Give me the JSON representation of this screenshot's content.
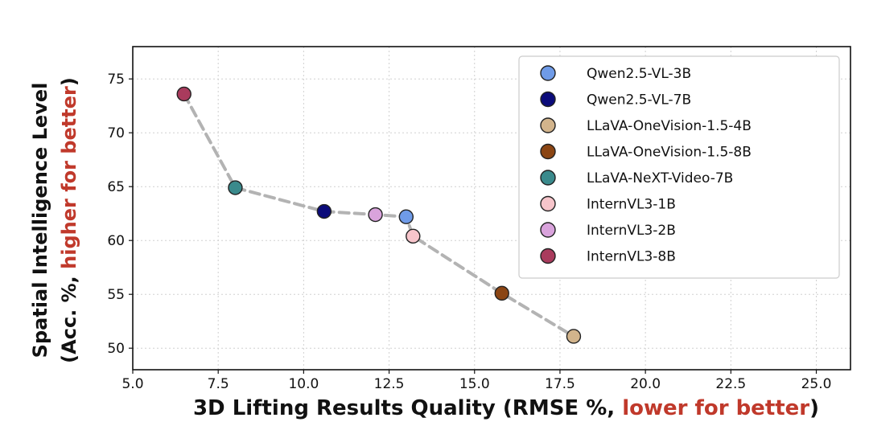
{
  "chart_data": {
    "type": "scatter",
    "xlabel": {
      "prefix": "3D Lifting Results Quality (RMSE %, ",
      "highlight": "lower for better",
      "suffix": ")"
    },
    "ylabel": {
      "line1": "Spatial Intelligence Level",
      "prefix": "(Acc. %, ",
      "highlight": "higher for better",
      "suffix": ")"
    },
    "highlight_color": "#c0392b",
    "xlim": [
      5.0,
      26.0
    ],
    "ylim": [
      48.0,
      78.0
    ],
    "x_ticks": [
      "5.0",
      "7.5",
      "10.0",
      "12.5",
      "15.0",
      "17.5",
      "20.0",
      "22.5",
      "25.0"
    ],
    "x_tick_values": [
      5.0,
      7.5,
      10.0,
      12.5,
      15.0,
      17.5,
      20.0,
      22.5,
      25.0
    ],
    "y_ticks": [
      "50",
      "55",
      "60",
      "65",
      "70",
      "75"
    ],
    "y_tick_values": [
      50,
      55,
      60,
      65,
      70,
      75
    ],
    "grid": true,
    "legend_position": "top-right",
    "trend_line_color": "#b3b3b3",
    "series": [
      {
        "name": "Qwen2.5-VL-3B",
        "x": 13.0,
        "y": 62.2,
        "color": "#6f9be8"
      },
      {
        "name": "Qwen2.5-VL-7B",
        "x": 10.6,
        "y": 62.7,
        "color": "#0b0b7a"
      },
      {
        "name": "LLaVA-OneVision-1.5-4B",
        "x": 17.9,
        "y": 51.1,
        "color": "#d2b48c"
      },
      {
        "name": "LLaVA-OneVision-1.5-8B",
        "x": 15.8,
        "y": 55.1,
        "color": "#8b4513"
      },
      {
        "name": "LLaVA-NeXT-Video-7B",
        "x": 8.0,
        "y": 64.9,
        "color": "#3a8a8c"
      },
      {
        "name": "InternVL3-1B",
        "x": 13.2,
        "y": 60.4,
        "color": "#f7c5cb"
      },
      {
        "name": "InternVL3-2B",
        "x": 12.1,
        "y": 62.4,
        "color": "#d9a3dc"
      },
      {
        "name": "InternVL3-8B",
        "x": 6.5,
        "y": 73.6,
        "color": "#a93b5d"
      }
    ],
    "trend_order": [
      "InternVL3-8B",
      "LLaVA-NeXT-Video-7B",
      "Qwen2.5-VL-7B",
      "InternVL3-2B",
      "Qwen2.5-VL-3B",
      "InternVL3-1B",
      "LLaVA-OneVision-1.5-8B",
      "LLaVA-OneVision-1.5-4B"
    ]
  }
}
